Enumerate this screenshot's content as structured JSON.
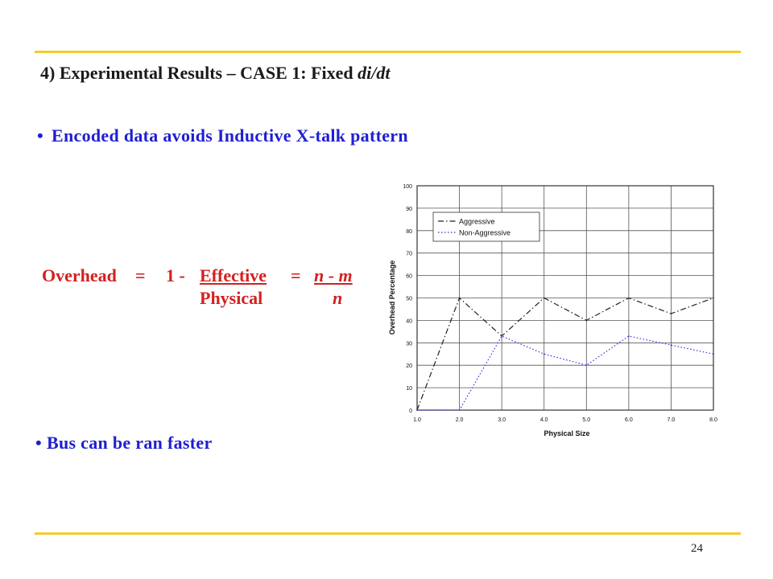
{
  "slide": {
    "title_prefix": "4) Experimental Results",
    "title_dash": "–",
    "title_case": "CASE 1: Fixed",
    "title_emph": "di/dt",
    "bullets": [
      "Encoded data avoids Inductive X-talk pattern",
      "Bus can be ran faster"
    ],
    "bullet_glyph": "•",
    "formula": {
      "lhs": "Overhead",
      "eq1": "=",
      "one_minus": "1 -",
      "numerator": "Effective",
      "eq2": "=",
      "rhs_numerator": "n - m",
      "denominator": "Physical",
      "rhs_denominator": "n"
    },
    "page_number": "24",
    "colors": {
      "accent_rule": "#f2cd2a",
      "bullet_text": "#1f1fd1",
      "formula_text": "#d42020",
      "aggressive_line": "#222222",
      "non_aggressive_line": "#3333dd"
    }
  },
  "chart_data": {
    "type": "line",
    "xlabel": "Physical Size",
    "ylabel": "Overhead Percentage",
    "x": [
      1.0,
      2.0,
      3.0,
      4.0,
      5.0,
      6.0,
      7.0,
      8.0
    ],
    "xticks": [
      "1.0",
      "2.0",
      "3.0",
      "4.0",
      "5.0",
      "6.0",
      "7.0",
      "8.0"
    ],
    "yticks": [
      0,
      10,
      20,
      30,
      40,
      50,
      60,
      70,
      80,
      90,
      100
    ],
    "xlim": [
      1,
      8
    ],
    "ylim": [
      0,
      100
    ],
    "grid": true,
    "legend_position": "top-left",
    "series": [
      {
        "name": "Aggressive",
        "style": "dash-dot",
        "values": [
          0,
          50,
          33,
          50,
          40,
          50,
          43,
          50
        ]
      },
      {
        "name": "Non-Aggressive",
        "style": "dotted",
        "values": [
          0,
          0,
          33,
          25,
          20,
          33,
          29,
          25
        ]
      }
    ]
  }
}
